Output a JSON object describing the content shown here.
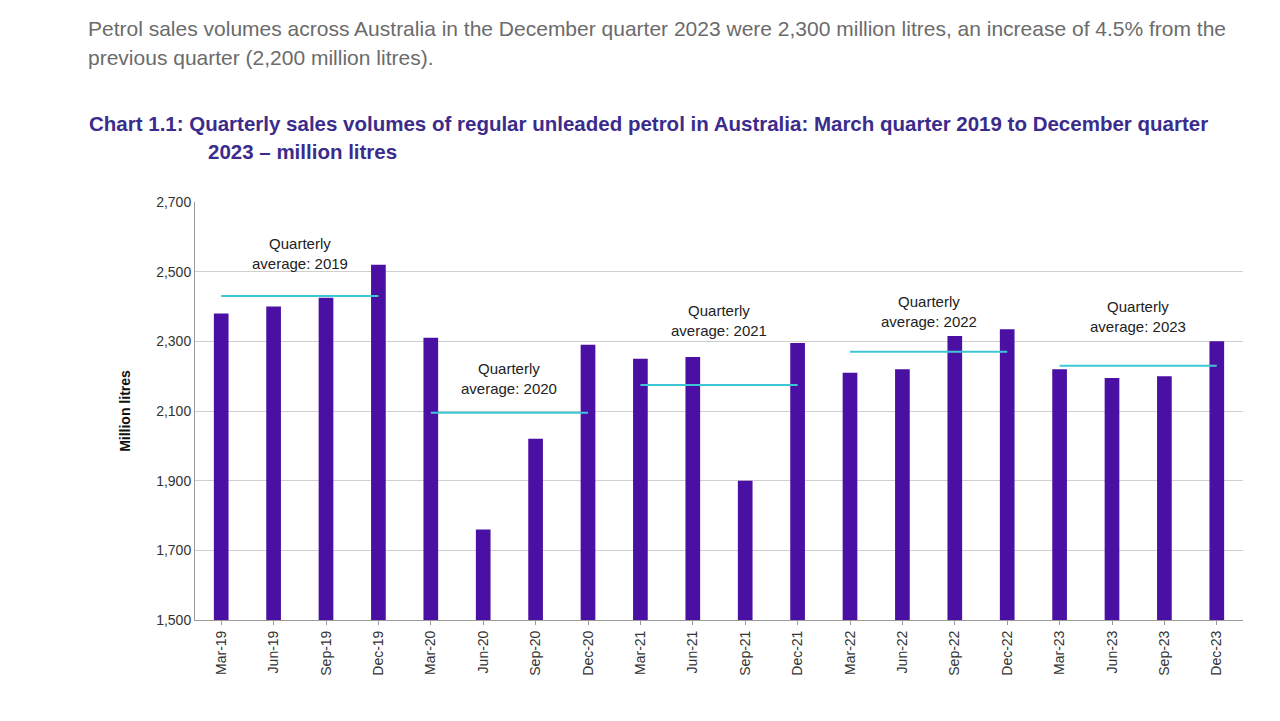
{
  "chart_data": {
    "type": "bar",
    "subtitle": "Petrol sales volumes across Australia in the December quarter 2023 were 2,300 million litres, an increase of 4.5% from the previous quarter (2,200 million litres).",
    "title": "Chart 1.1: Quarterly sales volumes of regular unleaded petrol in Australia: March quarter 2019 to December quarter 2023 – million litres",
    "y_label": "Million litres",
    "categories": [
      "Mar-19",
      "Jun-19",
      "Sep-19",
      "Dec-19",
      "Mar-20",
      "Jun-20",
      "Sep-20",
      "Dec-20",
      "Mar-21",
      "Jun-21",
      "Sep-21",
      "Dec-21",
      "Mar-22",
      "Jun-22",
      "Sep-22",
      "Dec-22",
      "Mar-23",
      "Jun-23",
      "Sep-23",
      "Dec-23"
    ],
    "values": [
      2380,
      2400,
      2425,
      2520,
      2310,
      1760,
      2020,
      2290,
      2250,
      2255,
      1900,
      2295,
      2210,
      2220,
      2315,
      2335,
      2220,
      2195,
      2200,
      2300
    ],
    "color": "#4a10a4",
    "averages": [
      {
        "label": [
          "Quarterly",
          "average: 2019"
        ],
        "value": 2430,
        "from": "Mar-19",
        "to": "Dec-19"
      },
      {
        "label": [
          "Quarterly",
          "average: 2020"
        ],
        "value": 2095,
        "from": "Mar-20",
        "to": "Dec-20"
      },
      {
        "label": [
          "Quarterly",
          "average: 2021"
        ],
        "value": 2175,
        "from": "Mar-21",
        "to": "Dec-21"
      },
      {
        "label": [
          "Quarterly",
          "average: 2022"
        ],
        "value": 2270,
        "from": "Mar-22",
        "to": "Dec-22"
      },
      {
        "label": [
          "Quarterly",
          "average: 2023"
        ],
        "value": 2230,
        "from": "Mar-23",
        "to": "Dec-23"
      }
    ],
    "average_color": "#3ec6d6",
    "ylim": [
      1500,
      2700
    ],
    "yticks": [
      {
        "value": 1500,
        "label": "1,500"
      },
      {
        "value": 1700,
        "label": "1,700"
      },
      {
        "value": 1900,
        "label": "1,900"
      },
      {
        "value": 2100,
        "label": "2,100"
      },
      {
        "value": 2300,
        "label": "2,300"
      },
      {
        "value": 2500,
        "label": "2,500"
      },
      {
        "value": 2700,
        "label": "2,700"
      }
    ],
    "grid": true
  }
}
